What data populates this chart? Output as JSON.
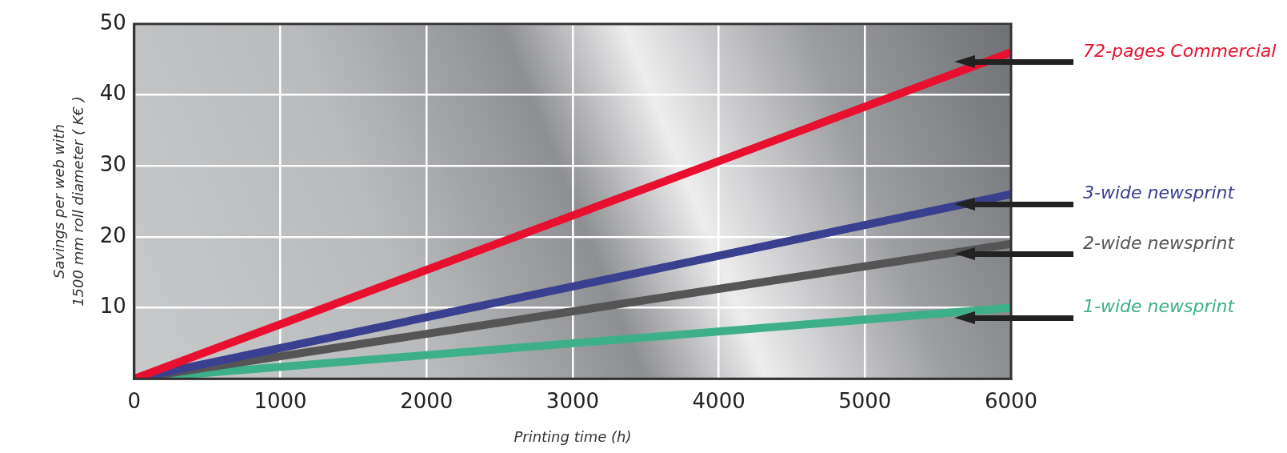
{
  "chart_data": {
    "type": "line",
    "xlabel": "Printing time (h)",
    "ylabel": "Savings per web with\n1500 mm roll diameter ( K€ )",
    "x": [
      0,
      6000
    ],
    "series": [
      {
        "name": "72-pages Commercial",
        "color": "#e8102e",
        "values": [
          0,
          46
        ]
      },
      {
        "name": "3-wide newsprint",
        "color": "#3a3f8f",
        "values": [
          0,
          26
        ]
      },
      {
        "name": "2-wide newsprint",
        "color": "#555555",
        "values": [
          0,
          19
        ]
      },
      {
        "name": "1-wide newsprint",
        "color": "#3db08a",
        "values": [
          0,
          10
        ]
      }
    ],
    "xlim": [
      0,
      6000
    ],
    "xticks": [
      0,
      1000,
      2000,
      3000,
      4000,
      5000,
      6000
    ],
    "ylim": [
      0,
      50
    ],
    "yticks": [
      {
        "value": 0,
        "label": null
      },
      10,
      20,
      30,
      40,
      50
    ],
    "grid": true,
    "legend": false,
    "marker": "none",
    "line_style": "solid"
  }
}
